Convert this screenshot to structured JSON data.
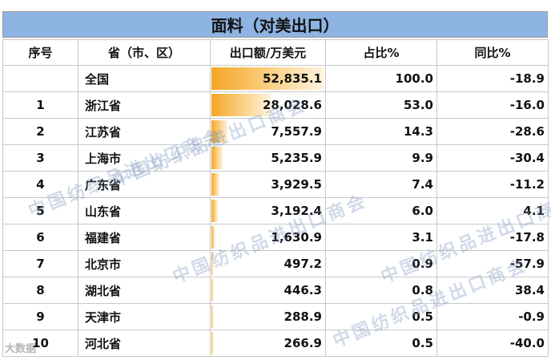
{
  "title": "面料（对美出口）",
  "headers": {
    "rank": "序号",
    "province": "省（市、区）",
    "export": "出口额/万美元",
    "share": "占比%",
    "yoy": "同比%"
  },
  "rows": [
    {
      "rank": "",
      "province": "全国",
      "export": "52,835.1",
      "export_value": 52835.1,
      "share": "100.0",
      "yoy": "-18.9"
    },
    {
      "rank": "1",
      "province": "浙江省",
      "export": "28,028.6",
      "export_value": 28028.6,
      "share": "53.0",
      "yoy": "-16.0"
    },
    {
      "rank": "2",
      "province": "江苏省",
      "export": "7,557.9",
      "export_value": 7557.9,
      "share": "14.3",
      "yoy": "-28.6"
    },
    {
      "rank": "3",
      "province": "上海市",
      "export": "5,235.9",
      "export_value": 5235.9,
      "share": "9.9",
      "yoy": "-30.4"
    },
    {
      "rank": "4",
      "province": "广东省",
      "export": "3,929.5",
      "export_value": 3929.5,
      "share": "7.4",
      "yoy": "-11.2"
    },
    {
      "rank": "5",
      "province": "山东省",
      "export": "3,192.4",
      "export_value": 3192.4,
      "share": "6.0",
      "yoy": "4.1"
    },
    {
      "rank": "6",
      "province": "福建省",
      "export": "1,630.9",
      "export_value": 1630.9,
      "share": "3.1",
      "yoy": "-17.8"
    },
    {
      "rank": "7",
      "province": "北京市",
      "export": "497.2",
      "export_value": 497.2,
      "share": "0.9",
      "yoy": "-57.9"
    },
    {
      "rank": "8",
      "province": "湖北省",
      "export": "446.3",
      "export_value": 446.3,
      "share": "0.8",
      "yoy": "38.4"
    },
    {
      "rank": "9",
      "province": "天津市",
      "export": "288.9",
      "export_value": 288.9,
      "share": "0.5",
      "yoy": "-0.9"
    },
    {
      "rank": "10",
      "province": "河北省",
      "export": "266.9",
      "export_value": 266.9,
      "share": "0.5",
      "yoy": "-40.0"
    }
  ],
  "watermark_text": "中国纺织品进出口商会",
  "source_mark": "大数据"
}
